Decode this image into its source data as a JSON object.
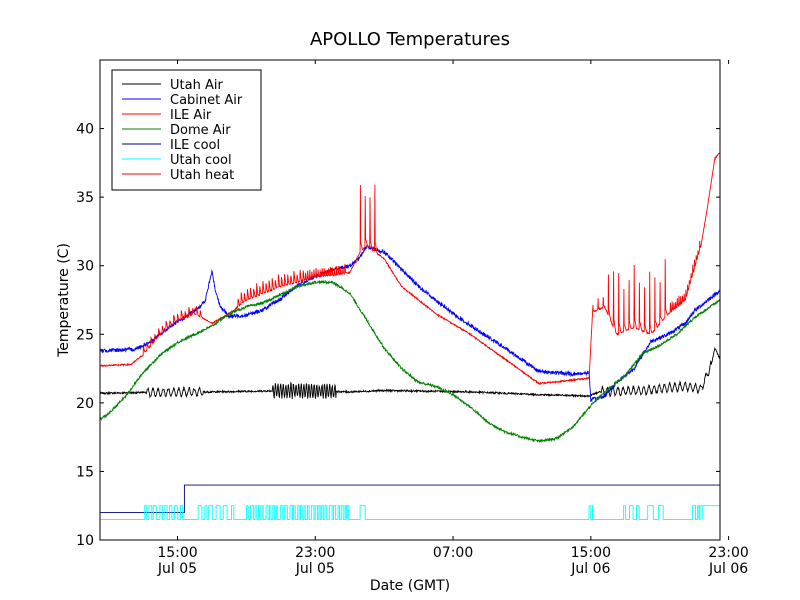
{
  "chart_data": {
    "type": "line",
    "title": "APOLLO Temperatures",
    "xlabel": "Date (GMT)",
    "ylabel": "Temperature (C)",
    "xlim": [
      10.5,
      46.5
    ],
    "ylim": [
      10,
      45
    ],
    "grid": false,
    "legend_position": "top-left",
    "yticks": [
      {
        "value": 10,
        "label": "10"
      },
      {
        "value": 15,
        "label": "15"
      },
      {
        "value": 20,
        "label": "20"
      },
      {
        "value": 25,
        "label": "25"
      },
      {
        "value": 30,
        "label": "30"
      },
      {
        "value": 35,
        "label": "35"
      },
      {
        "value": 40,
        "label": "40"
      }
    ],
    "xticks": [
      {
        "value": 15,
        "time": "15:00",
        "date": "Jul 05"
      },
      {
        "value": 23,
        "time": "23:00",
        "date": "Jul 05"
      },
      {
        "value": 31,
        "time": "07:00",
        "date": ""
      },
      {
        "value": 39,
        "time": "15:00",
        "date": "Jul 06"
      },
      {
        "value": 47,
        "time": "23:00",
        "date": "Jul 06"
      }
    ],
    "series": [
      {
        "name": "Utah Air",
        "color": "#000000",
        "noise": 0.06,
        "osc": [
          {
            "from": 13.2,
            "to": 16.5,
            "amp": 0.35,
            "period": 0.3
          },
          {
            "from": 20.5,
            "to": 24.2,
            "amp": 0.6,
            "period": 0.15
          },
          {
            "from": 39.6,
            "to": 46.0,
            "amp": 0.35,
            "period": 0.3
          }
        ],
        "points": [
          [
            10.5,
            20.7
          ],
          [
            13,
            20.75
          ],
          [
            17,
            20.8
          ],
          [
            22,
            20.9
          ],
          [
            25,
            20.8
          ],
          [
            27,
            20.9
          ],
          [
            32,
            20.8
          ],
          [
            36,
            20.6
          ],
          [
            38.9,
            20.5
          ],
          [
            39.5,
            20.8
          ],
          [
            42,
            20.9
          ],
          [
            44.5,
            21.2
          ],
          [
            45.4,
            21.0
          ],
          [
            46,
            22.8
          ],
          [
            46.2,
            24.0
          ],
          [
            46.5,
            23.2
          ]
        ]
      },
      {
        "name": "Cabinet Air",
        "color": "#0000ff",
        "noise": 0.14,
        "points": [
          [
            10.5,
            23.8
          ],
          [
            12.5,
            23.9
          ],
          [
            13.5,
            24.5
          ],
          [
            14.5,
            25.5
          ],
          [
            16,
            26.7
          ],
          [
            16.6,
            27.4
          ],
          [
            17,
            29.6
          ],
          [
            17.2,
            28.2
          ],
          [
            17.5,
            27.0
          ],
          [
            18,
            26.3
          ],
          [
            19,
            26.4
          ],
          [
            20,
            26.8
          ],
          [
            21,
            27.6
          ],
          [
            22,
            28.6
          ],
          [
            23,
            29.2
          ],
          [
            24,
            29.7
          ],
          [
            25,
            30.0
          ],
          [
            25.5,
            30.5
          ],
          [
            26,
            31.4
          ],
          [
            27,
            31.0
          ],
          [
            29,
            28.5
          ],
          [
            31,
            26.5
          ],
          [
            34,
            24.0
          ],
          [
            36,
            22.3
          ],
          [
            38,
            22.1
          ],
          [
            38.9,
            22.2
          ],
          [
            39,
            20.2
          ],
          [
            39.8,
            20.5
          ],
          [
            40.5,
            21.5
          ],
          [
            41.5,
            22.5
          ],
          [
            42.5,
            24.5
          ],
          [
            43.5,
            25.0
          ],
          [
            44.5,
            25.8
          ],
          [
            45,
            26.7
          ],
          [
            45.8,
            27.5
          ],
          [
            46.5,
            28.2
          ]
        ]
      },
      {
        "name": "ILE Air",
        "color": "#ff0000",
        "noise": 0.05,
        "spikes": [
          {
            "from": 13.0,
            "to": 16.5,
            "period": 0.22,
            "height": 4.5
          },
          {
            "from": 18.5,
            "to": 22.3,
            "period": 0.18,
            "height": 6.5
          },
          {
            "from": 22.3,
            "to": 24.8,
            "period": 0.12,
            "height": 5.5
          },
          {
            "from": 25.6,
            "to": 26.6,
            "period": 0.28,
            "height": 5.5
          },
          {
            "from": 39.1,
            "to": 39.8,
            "period": 0.3,
            "height": 1.0
          },
          {
            "from": 40.0,
            "to": 43.6,
            "period": 0.3,
            "height": 5.5
          },
          {
            "from": 43.6,
            "to": 45.4,
            "period": 0.1,
            "height": 6.5
          }
        ],
        "points": [
          [
            10.5,
            22.7
          ],
          [
            12.3,
            22.8
          ],
          [
            13,
            23.5
          ],
          [
            14,
            25.0
          ],
          [
            15,
            26.0
          ],
          [
            16,
            26.5
          ],
          [
            17,
            25.8
          ],
          [
            18,
            26.5
          ],
          [
            19,
            27.5
          ],
          [
            20,
            28.0
          ],
          [
            21,
            28.5
          ],
          [
            22,
            28.8
          ],
          [
            23,
            29.2
          ],
          [
            24,
            29.3
          ],
          [
            25,
            29.5
          ],
          [
            25.6,
            31.0
          ],
          [
            26,
            31.5
          ],
          [
            27,
            30.5
          ],
          [
            28,
            28.5
          ],
          [
            30,
            26.5
          ],
          [
            32,
            25.0
          ],
          [
            34,
            23.2
          ],
          [
            36,
            21.4
          ],
          [
            37.5,
            21.6
          ],
          [
            38.9,
            21.8
          ],
          [
            39.1,
            26.6
          ],
          [
            39.8,
            27.0
          ],
          [
            40.5,
            25.0
          ],
          [
            41.5,
            25.5
          ],
          [
            42.5,
            25.0
          ],
          [
            43.5,
            26.5
          ],
          [
            44.5,
            27.5
          ],
          [
            45.4,
            31.5
          ],
          [
            45.8,
            34.5
          ],
          [
            46.2,
            37.8
          ],
          [
            46.5,
            38.3
          ]
        ]
      },
      {
        "name": "Dome Air",
        "color": "#008000",
        "noise": 0.09,
        "points": [
          [
            10.5,
            18.8
          ],
          [
            11,
            19.2
          ],
          [
            12,
            20.5
          ],
          [
            13,
            22.2
          ],
          [
            14,
            23.5
          ],
          [
            15,
            24.4
          ],
          [
            16,
            25.0
          ],
          [
            17,
            25.6
          ],
          [
            18,
            26.5
          ],
          [
            19,
            27.0
          ],
          [
            20,
            27.3
          ],
          [
            21,
            27.9
          ],
          [
            22,
            28.5
          ],
          [
            23,
            28.8
          ],
          [
            24,
            28.8
          ],
          [
            25,
            28.0
          ],
          [
            26,
            26.0
          ],
          [
            27,
            24.0
          ],
          [
            28,
            22.5
          ],
          [
            29,
            21.5
          ],
          [
            30,
            21.2
          ],
          [
            31,
            20.6
          ],
          [
            32,
            19.7
          ],
          [
            33,
            18.6
          ],
          [
            34,
            17.9
          ],
          [
            35,
            17.5
          ],
          [
            36,
            17.2
          ],
          [
            37,
            17.4
          ],
          [
            38,
            18.3
          ],
          [
            39,
            19.8
          ],
          [
            40,
            21.0
          ],
          [
            41,
            22.0
          ],
          [
            42,
            23.6
          ],
          [
            43,
            24.2
          ],
          [
            44,
            25.0
          ],
          [
            45,
            26.2
          ],
          [
            46.5,
            27.5
          ]
        ]
      },
      {
        "name": "ILE cool",
        "color": "#000080",
        "noise": 0,
        "points": [
          [
            10.5,
            12.0
          ],
          [
            15.4,
            12.0
          ],
          [
            15.4,
            14.0
          ],
          [
            46.5,
            14.0
          ]
        ]
      },
      {
        "name": "Utah cool",
        "color": "#00ffff",
        "noise": 0,
        "toggle": {
          "low": 11.5,
          "high": 12.5,
          "blocks": [
            [
              13.1,
              15.4,
              0.14
            ],
            [
              16.2,
              18.3,
              0.2
            ],
            [
              19.0,
              25.0,
              0.12
            ],
            [
              25.6,
              25.9,
              0.3
            ],
            [
              38.9,
              39.1,
              0.1
            ],
            [
              40.9,
              41.8,
              0.2
            ],
            [
              42.3,
              43.2,
              0.3
            ],
            [
              44.9,
              45.5,
              0.12
            ]
          ]
        },
        "points": [
          [
            10.5,
            11.5
          ],
          [
            46.5,
            12.5
          ]
        ]
      },
      {
        "name": "Utah heat",
        "color": "#ff0000",
        "noise": 0,
        "points": []
      }
    ]
  }
}
